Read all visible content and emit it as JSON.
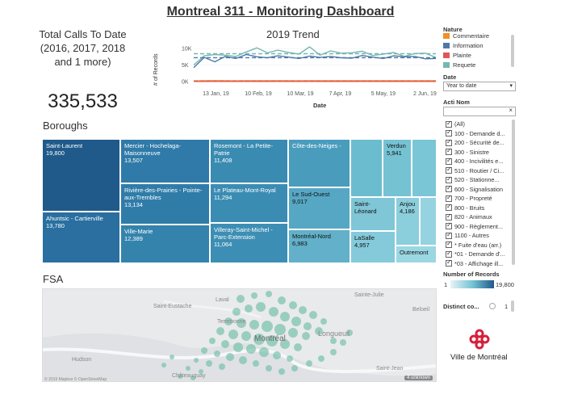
{
  "header": {
    "title": "Montreal 311 - Monitoring Dashboard"
  },
  "kpi": {
    "label": "Total Calls To Date (2016, 2017, 2018 and 1 more)",
    "value": "335,533"
  },
  "trend": {
    "title": "2019 Trend",
    "ylabel": "# of Records",
    "xlabel": "Date",
    "yticks": [
      "10K",
      "5K",
      "0K"
    ],
    "xticks": [
      "13 Jan, 19",
      "10 Feb, 19",
      "10 Mar, 19",
      "7 Apr, 19",
      "5 May, 19",
      "2 Jun, 19"
    ]
  },
  "chart_data": {
    "type": "line",
    "title": "2019 Trend",
    "xlabel": "Date",
    "ylabel": "# of Records",
    "ylim": [
      0,
      11000
    ],
    "x": [
      "1 Jan, 19",
      "8 Jan, 19",
      "13 Jan, 19",
      "20 Jan, 19",
      "27 Jan, 19",
      "3 Feb, 19",
      "10 Feb, 19",
      "17 Feb, 19",
      "24 Feb, 19",
      "3 Mar, 19",
      "10 Mar, 19",
      "17 Mar, 19",
      "24 Mar, 19",
      "31 Mar, 19",
      "7 Apr, 19",
      "14 Apr, 19",
      "21 Apr, 19",
      "28 Apr, 19",
      "5 May, 19",
      "12 May, 19",
      "19 May, 19",
      "26 May, 19",
      "2 Jun, 19",
      "9 Jun, 19"
    ],
    "series": [
      {
        "name": "Requete",
        "color": "#76b7b2",
        "values": [
          5000,
          7800,
          8200,
          8000,
          7600,
          9000,
          10200,
          8700,
          9500,
          8800,
          8300,
          10500,
          8000,
          9300,
          8600,
          8700,
          9200,
          7900,
          8300,
          8800,
          7600,
          8500,
          8600,
          7300
        ]
      },
      {
        "name": "Information",
        "color": "#4e79a7",
        "values": [
          4200,
          7300,
          6000,
          7600,
          7000,
          8200,
          7500,
          7200,
          7800,
          7400,
          7000,
          7700,
          7300,
          7600,
          7200,
          7100,
          7900,
          7400,
          7000,
          7800,
          7500,
          7600,
          6900,
          7000
        ]
      },
      {
        "name": "Commentaire",
        "color": "#f28e2b",
        "values": [
          200,
          250,
          300,
          250,
          220,
          280,
          260,
          240,
          270,
          250,
          230,
          260,
          250,
          240,
          260,
          250,
          270,
          240,
          250,
          260,
          240,
          250,
          260,
          240
        ]
      },
      {
        "name": "Plainte",
        "color": "#e15759",
        "values": [
          50,
          60,
          70,
          60,
          55,
          65,
          60,
          58,
          62,
          60,
          57,
          63,
          60,
          58,
          61,
          60,
          62,
          58,
          60,
          61,
          58,
          60,
          61,
          58
        ]
      }
    ]
  },
  "boroughs": {
    "title": "Boroughs",
    "tiles": [
      {
        "name": "Saint-Laurent",
        "value": "19,800"
      },
      {
        "name": "Ahuntsic - Cartierville",
        "value": "13,780"
      },
      {
        "name": "Mercier - Hochelaga-Maisonneuve",
        "value": "13,507"
      },
      {
        "name": "Rivière-des-Prairies - Pointe-aux-Trembles",
        "value": "13,134"
      },
      {
        "name": "Ville-Marie",
        "value": "12,389"
      },
      {
        "name": "Rosemont - La Petite-Patrie",
        "value": "11,408"
      },
      {
        "name": "Le Plateau-Mont-Royal",
        "value": "11,294"
      },
      {
        "name": "Villeray-Saint-Michel - Parc-Extension",
        "value": "11,064"
      },
      {
        "name": "Côte-des-Neiges -",
        "value": ""
      },
      {
        "name": "Le Sud-Ouest",
        "value": "9,017"
      },
      {
        "name": "Montréal-Nord",
        "value": "6,983"
      },
      {
        "name": "Verdun",
        "value": "5,941"
      },
      {
        "name": "Saint-Léonard",
        "value": ""
      },
      {
        "name": "LaSalle",
        "value": "4,957"
      },
      {
        "name": "Anjou",
        "value": "4,186"
      },
      {
        "name": "Outremont",
        "value": ""
      }
    ]
  },
  "fsa": {
    "title": "FSA",
    "places": [
      "Saint-Eustache",
      "Laval",
      "Terrebonne",
      "Sainte-Julie",
      "Beloeil",
      "Longueuil",
      "Montréal",
      "Hudson",
      "Saint-Jean",
      "Châteauguay"
    ],
    "attribution": "© 2019 Mapbox © OpenStreetMap",
    "unknown": "4 unknown"
  },
  "filters": {
    "nature_title": "Nature",
    "nature_items": [
      {
        "label": "Commentaire",
        "color": "#f28e2b"
      },
      {
        "label": "Information",
        "color": "#4e79a7"
      },
      {
        "label": "Plainte",
        "color": "#e15759"
      },
      {
        "label": "Requete",
        "color": "#76b7b2"
      }
    ],
    "date_title": "Date",
    "date_value": "Year to date",
    "acti_title": "Acti Nom",
    "acti_items": [
      "(All)",
      "100 - Demande d...",
      "200 - Sécurité de...",
      "300 - Sinistre",
      "400 - Incivilités e...",
      "510 - Routier / Ci...",
      "520 - Stationne...",
      "600 - Signalisation",
      "700 - Propreté",
      "800 - Bruits",
      "820 - Animaux",
      "900 - Règlement...",
      "1100 - Autres",
      "* Fuite d'eau (arr.)",
      "*01 - Demande d'...",
      "*03 - Affichage ill..."
    ],
    "records_title": "Number of Records",
    "records_min": "1",
    "records_max": "19,800",
    "distinct_title": "Distinct co...",
    "distinct_value": "1"
  },
  "logo": {
    "text": "Ville de Montréal"
  }
}
